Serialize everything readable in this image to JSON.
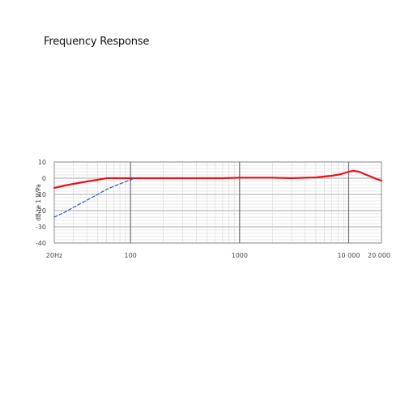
{
  "title": "Frequency Response",
  "chart_data": {
    "type": "line",
    "title": "Frequency Response",
    "xlabel": "",
    "ylabel": "dB re 1 V/Pa",
    "xscale": "log",
    "xlim": [
      20,
      20000
    ],
    "ylim": [
      -40,
      10
    ],
    "grid": true,
    "x_tick_labels": [
      "20Hz",
      "100",
      "1000",
      "10 000",
      "20 000"
    ],
    "x_ticks": [
      20,
      100,
      1000,
      10000,
      20000
    ],
    "y_ticks": [
      10,
      0,
      -10,
      -20,
      -30,
      -40
    ],
    "y_tick_labels": [
      "10",
      "0",
      "-10",
      "-20",
      "-30",
      "-40"
    ],
    "series": [
      {
        "style": "solid",
        "color": "#e8141b",
        "points": [
          [
            20,
            -6
          ],
          [
            25,
            -4.5
          ],
          [
            30,
            -3.5
          ],
          [
            40,
            -2
          ],
          [
            50,
            -1
          ],
          [
            60,
            0
          ],
          [
            80,
            0
          ],
          [
            100,
            0
          ],
          [
            150,
            0
          ],
          [
            200,
            0
          ],
          [
            300,
            0
          ],
          [
            500,
            0
          ],
          [
            700,
            0
          ],
          [
            1000,
            0.3
          ],
          [
            2000,
            0.3
          ],
          [
            3000,
            0
          ],
          [
            5000,
            0.5
          ],
          [
            7000,
            1.5
          ],
          [
            8500,
            2.5
          ],
          [
            10000,
            4
          ],
          [
            11000,
            4.5
          ],
          [
            12500,
            4
          ],
          [
            14000,
            2.5
          ],
          [
            16000,
            1
          ],
          [
            18000,
            -0.5
          ],
          [
            20000,
            -1.5
          ]
        ]
      },
      {
        "style": "dashed",
        "color": "#2a5db0",
        "points": [
          [
            20,
            -24
          ],
          [
            25,
            -21
          ],
          [
            30,
            -18
          ],
          [
            40,
            -13.5
          ],
          [
            50,
            -10
          ],
          [
            60,
            -7
          ],
          [
            70,
            -5
          ],
          [
            80,
            -3.5
          ],
          [
            90,
            -2.2
          ],
          [
            100,
            -1
          ],
          [
            110,
            0
          ]
        ]
      }
    ]
  }
}
